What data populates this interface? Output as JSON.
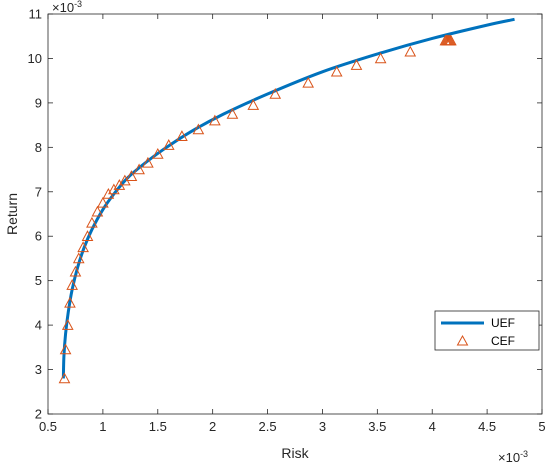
{
  "chart_data": {
    "type": "line",
    "xlabel": "Risk",
    "ylabel": "Return",
    "x_exponent": "×10",
    "x_exponent_power": "-3",
    "y_exponent": "×10",
    "y_exponent_power": "-3",
    "xlim": [
      0.5,
      5
    ],
    "ylim": [
      2,
      11
    ],
    "xticks": [
      0.5,
      1,
      1.5,
      2,
      2.5,
      3,
      3.5,
      4,
      4.5,
      5
    ],
    "yticks": [
      2,
      3,
      4,
      5,
      6,
      7,
      8,
      9,
      10,
      11
    ],
    "grid": false,
    "legend_position": "lower-right",
    "colors": {
      "uef": "#0072BD",
      "cef": "#D95319"
    },
    "series": [
      {
        "name": "UEF",
        "style": "line",
        "x": [
          0.64,
          0.645,
          0.66,
          0.685,
          0.72,
          0.77,
          0.83,
          0.9,
          1.0,
          1.1,
          1.22,
          1.36,
          1.55,
          1.8,
          2.1,
          2.5,
          3.0,
          3.5,
          4.0,
          4.5,
          4.75
        ],
        "y": [
          2.8,
          3.3,
          3.8,
          4.3,
          4.8,
          5.3,
          5.75,
          6.15,
          6.6,
          6.95,
          7.3,
          7.6,
          7.95,
          8.35,
          8.75,
          9.2,
          9.7,
          10.1,
          10.45,
          10.75,
          10.88
        ]
      },
      {
        "name": "CEF",
        "style": "triangle-markers",
        "x": [
          0.65,
          0.66,
          0.68,
          0.7,
          0.72,
          0.75,
          0.78,
          0.82,
          0.86,
          0.9,
          0.95,
          1.0,
          1.05,
          1.1,
          1.15,
          1.2,
          1.26,
          1.33,
          1.41,
          1.5,
          1.6,
          1.72,
          1.87,
          2.02,
          2.18,
          2.37,
          2.57,
          2.87,
          3.13,
          3.31,
          3.53,
          3.8,
          4.12,
          4.13,
          4.14,
          4.15,
          4.16,
          4.17
        ],
        "y": [
          2.8,
          3.45,
          4.0,
          4.5,
          4.9,
          5.2,
          5.5,
          5.75,
          6.0,
          6.3,
          6.55,
          6.75,
          6.95,
          7.05,
          7.15,
          7.25,
          7.35,
          7.5,
          7.65,
          7.85,
          8.05,
          8.25,
          8.4,
          8.6,
          8.75,
          8.95,
          9.2,
          9.45,
          9.7,
          9.85,
          10.0,
          10.15,
          10.4,
          10.4,
          10.4,
          10.4,
          10.4,
          10.4
        ]
      }
    ]
  }
}
